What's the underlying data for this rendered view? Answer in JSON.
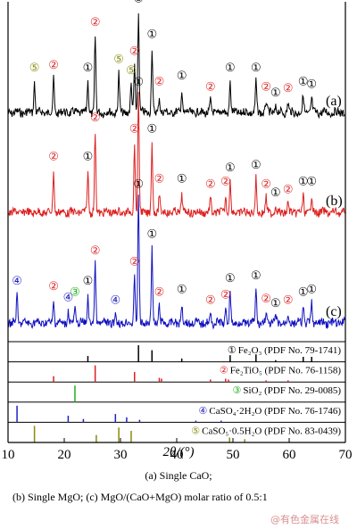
{
  "chart_data": {
    "type": "line",
    "xlabel": "2θ/(°)",
    "xlim": [
      10,
      70
    ],
    "x_ticks": [
      "10",
      "20",
      "30",
      "40",
      "50",
      "60",
      "70"
    ],
    "phases": [
      {
        "id": "1",
        "label": "Fe₂O₃ (PDF No. 79-1741)",
        "color": "#000000",
        "peaks": [
          {
            "x": 24.2,
            "i": 0.35
          },
          {
            "x": 33.2,
            "i": 1.0
          },
          {
            "x": 35.6,
            "i": 0.7
          },
          {
            "x": 40.9,
            "i": 0.2
          },
          {
            "x": 49.5,
            "i": 0.4
          },
          {
            "x": 54.1,
            "i": 0.45
          },
          {
            "x": 57.6,
            "i": 0.1
          },
          {
            "x": 62.5,
            "i": 0.3
          },
          {
            "x": 64.0,
            "i": 0.3
          }
        ]
      },
      {
        "id": "2",
        "label": "Fe₂TiO₅ (PDF No. 76-1158)",
        "color": "#dd2020",
        "peaks": [
          {
            "x": 18.1,
            "i": 0.35
          },
          {
            "x": 25.5,
            "i": 1.0
          },
          {
            "x": 32.5,
            "i": 0.6
          },
          {
            "x": 36.9,
            "i": 0.25
          },
          {
            "x": 37.3,
            "i": 0.2
          },
          {
            "x": 46.0,
            "i": 0.15
          },
          {
            "x": 48.7,
            "i": 0.2
          },
          {
            "x": 49.2,
            "i": 0.15
          },
          {
            "x": 55.9,
            "i": 0.1
          },
          {
            "x": 59.8,
            "i": 0.1
          }
        ]
      },
      {
        "id": "3",
        "label": "SiO₂ (PDF No. 29-0085)",
        "color": "#20b020",
        "peaks": [
          {
            "x": 21.9,
            "i": 1.0
          }
        ]
      },
      {
        "id": "4",
        "label": "CaSO₄·2H₂O (PDF No. 76-1746)",
        "color": "#2020c0",
        "peaks": [
          {
            "x": 11.6,
            "i": 1.0
          },
          {
            "x": 20.7,
            "i": 0.4
          },
          {
            "x": 23.4,
            "i": 0.2
          },
          {
            "x": 29.1,
            "i": 0.5
          },
          {
            "x": 31.1,
            "i": 0.3
          },
          {
            "x": 33.4,
            "i": 0.15
          },
          {
            "x": 43.4,
            "i": 0.1
          },
          {
            "x": 47.9,
            "i": 0.1
          }
        ]
      },
      {
        "id": "5",
        "label": "CaSO₅·0.5H₂O (PDF No. 83-0439)",
        "color": "#8a8a10",
        "peaks": [
          {
            "x": 14.7,
            "i": 1.0
          },
          {
            "x": 25.7,
            "i": 0.45
          },
          {
            "x": 29.7,
            "i": 0.9
          },
          {
            "x": 31.9,
            "i": 0.7
          },
          {
            "x": 49.4,
            "i": 0.3
          },
          {
            "x": 52.1,
            "i": 0.2
          }
        ]
      }
    ],
    "series": [
      {
        "name": "(a)",
        "color": "#000000",
        "peaks": [
          {
            "x": 14.7,
            "h": 0.22,
            "m": "5"
          },
          {
            "x": 18.1,
            "h": 0.24,
            "m": "2"
          },
          {
            "x": 24.2,
            "h": 0.22,
            "m": "1"
          },
          {
            "x": 25.5,
            "h": 0.55,
            "m": "2"
          },
          {
            "x": 29.7,
            "h": 0.28,
            "m": "5"
          },
          {
            "x": 31.9,
            "h": 0.2,
            "m": "5"
          },
          {
            "x": 32.5,
            "h": 0.34,
            "m": "2"
          },
          {
            "x": 33.2,
            "h": 0.72,
            "m": "1"
          },
          {
            "x": 35.6,
            "h": 0.46,
            "m": "1"
          },
          {
            "x": 36.9,
            "h": 0.12,
            "m": "2"
          },
          {
            "x": 40.9,
            "h": 0.16,
            "m": "1"
          },
          {
            "x": 46.0,
            "h": 0.08,
            "m": "2"
          },
          {
            "x": 49.5,
            "h": 0.22,
            "m": "1"
          },
          {
            "x": 54.1,
            "h": 0.22,
            "m": "1"
          },
          {
            "x": 55.9,
            "h": 0.08,
            "m": "2"
          },
          {
            "x": 57.6,
            "h": 0.04,
            "m": "1"
          },
          {
            "x": 59.8,
            "h": 0.07,
            "m": "2"
          },
          {
            "x": 62.5,
            "h": 0.12,
            "m": "1"
          },
          {
            "x": 64.0,
            "h": 0.1,
            "m": "1"
          }
        ]
      },
      {
        "name": "(b)",
        "color": "#dd2020",
        "peaks": [
          {
            "x": 18.1,
            "h": 0.3,
            "m": "2"
          },
          {
            "x": 24.2,
            "h": 0.3,
            "m": "1"
          },
          {
            "x": 25.5,
            "h": 0.58,
            "m": "2"
          },
          {
            "x": 32.5,
            "h": 0.5,
            "m": "2"
          },
          {
            "x": 33.2,
            "h": 0.84,
            "m": "1"
          },
          {
            "x": 35.6,
            "h": 0.5,
            "m": "1"
          },
          {
            "x": 36.9,
            "h": 0.14,
            "m": "2"
          },
          {
            "x": 40.9,
            "h": 0.14,
            "m": "1"
          },
          {
            "x": 46.0,
            "h": 0.1,
            "m": "2"
          },
          {
            "x": 48.7,
            "h": 0.12,
            "m": "2"
          },
          {
            "x": 49.5,
            "h": 0.22,
            "m": "1"
          },
          {
            "x": 54.1,
            "h": 0.24,
            "m": "1"
          },
          {
            "x": 55.9,
            "h": 0.1,
            "m": "2"
          },
          {
            "x": 57.6,
            "h": 0.04,
            "m": "1"
          },
          {
            "x": 59.8,
            "h": 0.06,
            "m": "2"
          },
          {
            "x": 62.5,
            "h": 0.12,
            "m": "1"
          },
          {
            "x": 64.0,
            "h": 0.12,
            "m": "1"
          }
        ]
      },
      {
        "name": "(c)",
        "color": "#1010c0",
        "peaks": [
          {
            "x": 11.6,
            "h": 0.2,
            "m": "4"
          },
          {
            "x": 18.1,
            "h": 0.16,
            "m": "2"
          },
          {
            "x": 20.7,
            "h": 0.08,
            "m": "4"
          },
          {
            "x": 21.9,
            "h": 0.12,
            "m": "3"
          },
          {
            "x": 24.2,
            "h": 0.2,
            "m": "1"
          },
          {
            "x": 25.5,
            "h": 0.42,
            "m": "2"
          },
          {
            "x": 29.1,
            "h": 0.06,
            "m": "4"
          },
          {
            "x": 32.5,
            "h": 0.34,
            "m": "2"
          },
          {
            "x": 33.2,
            "h": 0.9,
            "m": "1"
          },
          {
            "x": 35.6,
            "h": 0.54,
            "m": "1"
          },
          {
            "x": 36.9,
            "h": 0.12,
            "m": "2"
          },
          {
            "x": 40.9,
            "h": 0.14,
            "m": "1"
          },
          {
            "x": 46.0,
            "h": 0.06,
            "m": "2"
          },
          {
            "x": 48.7,
            "h": 0.1,
            "m": "2"
          },
          {
            "x": 49.5,
            "h": 0.22,
            "m": "1"
          },
          {
            "x": 54.1,
            "h": 0.24,
            "m": "1"
          },
          {
            "x": 55.9,
            "h": 0.07,
            "m": "2"
          },
          {
            "x": 57.6,
            "h": 0.04,
            "m": "1"
          },
          {
            "x": 59.8,
            "h": 0.06,
            "m": "2"
          },
          {
            "x": 62.5,
            "h": 0.12,
            "m": "1"
          },
          {
            "x": 64.0,
            "h": 0.14,
            "m": "1"
          }
        ]
      }
    ]
  },
  "caption": {
    "a": "(a) Single CaO;",
    "b": "(b) Single MgO; (c) MgO/(CaO+MgO) molar ratio of 0.5:1"
  },
  "watermark": "@有色金属在线"
}
